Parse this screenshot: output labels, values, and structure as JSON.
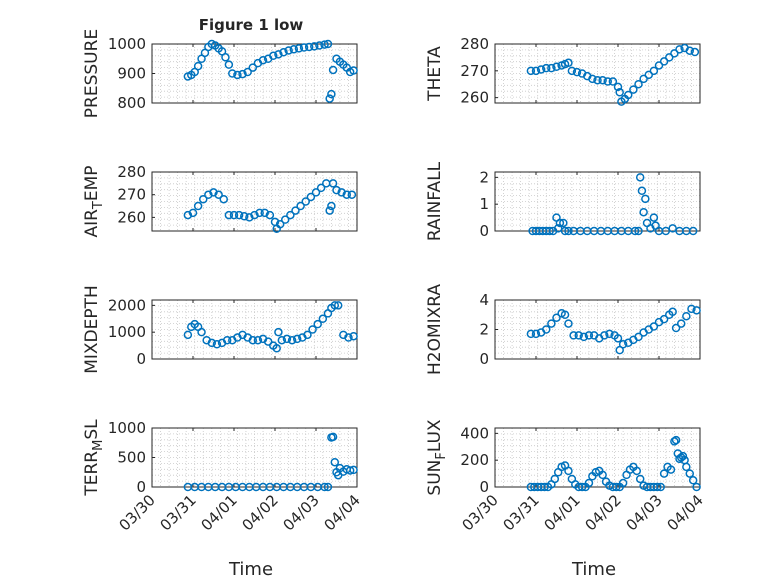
{
  "figure_title": "Figure 1 low",
  "chart_data": [
    {
      "type": "scatter",
      "ylabel": "PRESSURE",
      "ylim": [
        800,
        1000
      ],
      "yticks": [
        "800",
        "900",
        "1000"
      ],
      "xticks": [
        "03/30",
        "03/31",
        "04/01",
        "04/02",
        "04/03",
        "04/04"
      ],
      "x": [
        "03/30 21:00",
        "03/30 23:00",
        "03/31 01:00",
        "03/31 03:00",
        "03/31 05:00",
        "03/31 07:00",
        "03/31 09:00",
        "03/31 11:00",
        "03/31 13:00",
        "03/31 15:00",
        "03/31 17:00",
        "03/31 19:00",
        "03/31 21:00",
        "03/31 23:00",
        "04/01 02:00",
        "04/01 05:00",
        "04/01 08:00",
        "04/01 11:00",
        "04/01 14:00",
        "04/01 17:00",
        "04/01 20:00",
        "04/01 23:00",
        "04/02 02:00",
        "04/02 05:00",
        "04/02 08:00",
        "04/02 11:00",
        "04/02 14:00",
        "04/02 17:00",
        "04/02 20:00",
        "04/02 23:00",
        "04/03 02:00",
        "04/03 05:00",
        "04/03 07:00",
        "04/03 08:00",
        "04/03 09:00",
        "04/03 10:00",
        "04/03 12:00",
        "04/03 14:00",
        "04/03 16:00",
        "04/03 18:00",
        "04/03 20:00",
        "04/03 22:00"
      ],
      "y": [
        890,
        895,
        905,
        925,
        950,
        970,
        990,
        1000,
        995,
        985,
        975,
        955,
        930,
        900,
        895,
        898,
        905,
        920,
        935,
        945,
        950,
        960,
        965,
        972,
        978,
        982,
        985,
        988,
        990,
        992,
        995,
        998,
        1000,
        815,
        830,
        912,
        950,
        940,
        930,
        920,
        905,
        910
      ]
    },
    {
      "type": "scatter",
      "ylabel": "THETA",
      "ylim": [
        258,
        280
      ],
      "yticks": [
        "260",
        "270",
        "280"
      ],
      "xticks": [
        "03/30",
        "03/31",
        "04/01",
        "04/02",
        "04/03",
        "04/04"
      ],
      "x": [
        "03/30 21:00",
        "03/31 00:00",
        "03/31 03:00",
        "03/31 06:00",
        "03/31 09:00",
        "03/31 12:00",
        "03/31 15:00",
        "03/31 17:00",
        "03/31 19:00",
        "03/31 21:00",
        "04/01 00:00",
        "04/01 03:00",
        "04/01 06:00",
        "04/01 09:00",
        "04/01 12:00",
        "04/01 15:00",
        "04/01 18:00",
        "04/01 21:00",
        "04/02 00:00",
        "04/02 01:00",
        "04/02 02:00",
        "04/02 04:00",
        "04/02 06:00",
        "04/02 09:00",
        "04/02 12:00",
        "04/02 15:00",
        "04/02 18:00",
        "04/02 21:00",
        "04/03 00:00",
        "04/03 03:00",
        "04/03 06:00",
        "04/03 09:00",
        "04/03 12:00",
        "04/03 15:00",
        "04/03 18:00",
        "04/03 21:00"
      ],
      "y": [
        270,
        270,
        270.5,
        271,
        271,
        271.5,
        272,
        272.5,
        273,
        270,
        269.5,
        269,
        268,
        267,
        266.5,
        266.5,
        266,
        266,
        264,
        262,
        258.5,
        259.5,
        261,
        263,
        265,
        267,
        268.5,
        270,
        272,
        273.5,
        275,
        276.5,
        278,
        278.5,
        277.5,
        277
      ]
    },
    {
      "type": "scatter",
      "ylabel": "AIR_TEMP",
      "ylim": [
        254,
        280
      ],
      "yticks": [
        "260",
        "270",
        "280"
      ],
      "xticks": [
        "03/30",
        "03/31",
        "04/01",
        "04/02",
        "04/03",
        "04/04"
      ],
      "x": [
        "03/30 21:00",
        "03/31 00:00",
        "03/31 03:00",
        "03/31 06:00",
        "03/31 09:00",
        "03/31 12:00",
        "03/31 15:00",
        "03/31 18:00",
        "03/31 21:00",
        "04/01 00:00",
        "04/01 03:00",
        "04/01 06:00",
        "04/01 09:00",
        "04/01 12:00",
        "04/01 15:00",
        "04/01 18:00",
        "04/01 21:00",
        "04/02 00:00",
        "04/02 01:00",
        "04/02 03:00",
        "04/02 06:00",
        "04/02 09:00",
        "04/02 12:00",
        "04/02 15:00",
        "04/02 18:00",
        "04/02 21:00",
        "04/03 00:00",
        "04/03 03:00",
        "04/03 06:00",
        "04/03 08:00",
        "04/03 09:00",
        "04/03 10:00",
        "04/03 12:00",
        "04/03 15:00",
        "04/03 18:00",
        "04/03 21:00"
      ],
      "y": [
        261,
        262,
        265,
        268,
        270,
        271,
        270,
        268,
        261,
        261,
        261,
        260.5,
        260,
        261,
        262,
        262,
        261,
        258,
        255,
        257,
        259,
        261,
        263,
        265,
        267,
        269,
        271,
        273,
        275,
        263,
        265,
        275,
        272,
        271,
        270,
        270
      ]
    },
    {
      "type": "scatter",
      "ylabel": "RAINFALL",
      "ylim": [
        0,
        2.2
      ],
      "yticks": [
        "0",
        "1",
        "2"
      ],
      "xticks": [
        "03/30",
        "03/31",
        "04/01",
        "04/02",
        "04/03",
        "04/04"
      ],
      "x": [
        "03/30 22:00",
        "03/31 00:00",
        "03/31 02:00",
        "03/31 04:00",
        "03/31 06:00",
        "03/31 08:00",
        "03/31 10:00",
        "03/31 12:00",
        "03/31 13:00",
        "03/31 14:00",
        "03/31 16:00",
        "03/31 17:00",
        "03/31 19:00",
        "03/31 22:00",
        "04/01 02:00",
        "04/01 06:00",
        "04/01 10:00",
        "04/01 14:00",
        "04/01 18:00",
        "04/01 22:00",
        "04/02 02:00",
        "04/02 06:00",
        "04/02 10:00",
        "04/02 12:00",
        "04/02 13:00",
        "04/02 14:00",
        "04/02 15:00",
        "04/02 16:00",
        "04/02 17:00",
        "04/02 19:00",
        "04/02 21:00",
        "04/02 22:00",
        "04/03 00:00",
        "04/03 04:00",
        "04/03 08:00",
        "04/03 12:00",
        "04/03 16:00",
        "04/03 20:00"
      ],
      "y": [
        0,
        0,
        0,
        0,
        0,
        0,
        0,
        0.5,
        0.1,
        0.3,
        0.3,
        0,
        0,
        0,
        0,
        0,
        0,
        0,
        0,
        0,
        0,
        0,
        0,
        0,
        2,
        1.5,
        0.7,
        1.2,
        0.3,
        0.1,
        0.5,
        0.2,
        0,
        0,
        0.1,
        0,
        0,
        0
      ]
    },
    {
      "type": "scatter",
      "ylabel": "MIXDEPTH",
      "ylim": [
        0,
        2200
      ],
      "yticks": [
        "0",
        "1000",
        "2000"
      ],
      "xticks": [
        "03/30",
        "03/31",
        "04/01",
        "04/02",
        "04/03",
        "04/04"
      ],
      "x": [
        "03/30 21:00",
        "03/30 23:00",
        "03/31 01:00",
        "03/31 03:00",
        "03/31 05:00",
        "03/31 08:00",
        "03/31 11:00",
        "03/31 14:00",
        "03/31 17:00",
        "03/31 20:00",
        "03/31 23:00",
        "04/01 02:00",
        "04/01 05:00",
        "04/01 08:00",
        "04/01 11:00",
        "04/01 14:00",
        "04/01 17:00",
        "04/01 20:00",
        "04/01 23:00",
        "04/02 01:00",
        "04/02 02:00",
        "04/02 04:00",
        "04/02 07:00",
        "04/02 10:00",
        "04/02 13:00",
        "04/02 16:00",
        "04/02 19:00",
        "04/02 22:00",
        "04/03 01:00",
        "04/03 04:00",
        "04/03 07:00",
        "04/03 09:00",
        "04/03 11:00",
        "04/03 13:00",
        "04/03 16:00",
        "04/03 19:00",
        "04/03 22:00"
      ],
      "y": [
        900,
        1200,
        1300,
        1200,
        1000,
        700,
        600,
        550,
        600,
        700,
        700,
        800,
        900,
        800,
        700,
        700,
        750,
        650,
        500,
        400,
        1000,
        700,
        750,
        700,
        750,
        800,
        900,
        1100,
        1300,
        1500,
        1700,
        1900,
        2000,
        2000,
        900,
        800,
        850
      ]
    },
    {
      "type": "scatter",
      "ylabel": "H2OMIXRA",
      "ylim": [
        0,
        4
      ],
      "yticks": [
        "0",
        "2",
        "4"
      ],
      "xticks": [
        "03/30",
        "03/31",
        "04/01",
        "04/02",
        "04/03",
        "04/04"
      ],
      "x": [
        "03/30 21:00",
        "03/31 00:00",
        "03/31 03:00",
        "03/31 06:00",
        "03/31 09:00",
        "03/31 12:00",
        "03/31 15:00",
        "03/31 17:00",
        "03/31 19:00",
        "03/31 22:00",
        "04/01 01:00",
        "04/01 04:00",
        "04/01 07:00",
        "04/01 10:00",
        "04/01 13:00",
        "04/01 16:00",
        "04/01 19:00",
        "04/01 22:00",
        "04/02 00:00",
        "04/02 01:00",
        "04/02 03:00",
        "04/02 06:00",
        "04/02 09:00",
        "04/02 12:00",
        "04/02 15:00",
        "04/02 18:00",
        "04/02 21:00",
        "04/03 00:00",
        "04/03 03:00",
        "04/03 06:00",
        "04/03 08:00",
        "04/03 10:00",
        "04/03 13:00",
        "04/03 16:00",
        "04/03 19:00",
        "04/03 22:00"
      ],
      "y": [
        1.7,
        1.7,
        1.8,
        2,
        2.4,
        2.8,
        3.1,
        3,
        2.4,
        1.6,
        1.6,
        1.5,
        1.6,
        1.6,
        1.4,
        1.6,
        1.7,
        1.6,
        1.4,
        0.6,
        1.0,
        1.1,
        1.3,
        1.5,
        1.8,
        2,
        2.2,
        2.5,
        2.7,
        3,
        3.2,
        2.1,
        2.4,
        2.9,
        3.4,
        3.3
      ]
    },
    {
      "type": "scatter",
      "ylabel": "TERR_MSL",
      "ylim": [
        0,
        1000
      ],
      "yticks": [
        "0",
        "500",
        "1000"
      ],
      "xticks": [
        "03/30",
        "03/31",
        "04/01",
        "04/02",
        "04/03",
        "04/04"
      ],
      "x": [
        "03/30 21:00",
        "03/31 01:00",
        "03/31 05:00",
        "03/31 09:00",
        "03/31 13:00",
        "03/31 17:00",
        "03/31 21:00",
        "04/01 01:00",
        "04/01 05:00",
        "04/01 09:00",
        "04/01 13:00",
        "04/01 17:00",
        "04/01 21:00",
        "04/02 01:00",
        "04/02 05:00",
        "04/02 09:00",
        "04/02 13:00",
        "04/02 17:00",
        "04/02 21:00",
        "04/03 01:00",
        "04/03 05:00",
        "04/03 07:00",
        "04/03 09:00",
        "04/03 10:00",
        "04/03 11:00",
        "04/03 12:00",
        "04/03 13:00",
        "04/03 14:00",
        "04/03 16:00",
        "04/03 18:00",
        "04/03 20:00",
        "04/03 22:00"
      ],
      "y": [
        0,
        0,
        0,
        0,
        0,
        0,
        0,
        0,
        0,
        0,
        0,
        0,
        0,
        0,
        0,
        0,
        0,
        0,
        0,
        0,
        0,
        0,
        840,
        850,
        420,
        250,
        200,
        320,
        260,
        300,
        280,
        290
      ]
    },
    {
      "type": "scatter",
      "ylabel": "SUN_FLUX",
      "ylim": [
        0,
        440
      ],
      "yticks": [
        "0",
        "200",
        "400"
      ],
      "xticks": [
        "03/30",
        "03/31",
        "04/01",
        "04/02",
        "04/03",
        "04/04"
      ],
      "x": [
        "03/30 21:00",
        "03/30 23:00",
        "03/31 01:00",
        "03/31 03:00",
        "03/31 05:00",
        "03/31 07:00",
        "03/31 09:00",
        "03/31 11:00",
        "03/31 13:00",
        "03/31 15:00",
        "03/31 17:00",
        "03/31 19:00",
        "03/31 21:00",
        "03/31 23:00",
        "04/01 01:00",
        "04/01 03:00",
        "04/01 05:00",
        "04/01 07:00",
        "04/01 09:00",
        "04/01 11:00",
        "04/01 13:00",
        "04/01 15:00",
        "04/01 17:00",
        "04/01 19:00",
        "04/01 21:00",
        "04/01 23:00",
        "04/02 01:00",
        "04/02 03:00",
        "04/02 05:00",
        "04/02 07:00",
        "04/02 09:00",
        "04/02 11:00",
        "04/02 13:00",
        "04/02 15:00",
        "04/02 17:00",
        "04/02 19:00",
        "04/02 21:00",
        "04/02 23:00",
        "04/03 01:00",
        "04/03 03:00",
        "04/03 05:00",
        "04/03 07:00",
        "04/03 09:00",
        "04/03 10:00",
        "04/03 11:00",
        "04/03 12:00",
        "04/03 13:00",
        "04/03 14:00",
        "04/03 15:00",
        "04/03 16:00",
        "04/03 18:00",
        "04/03 20:00",
        "04/03 22:00"
      ],
      "y": [
        0,
        0,
        0,
        0,
        0,
        0,
        20,
        60,
        110,
        150,
        160,
        120,
        60,
        20,
        0,
        0,
        0,
        30,
        80,
        110,
        120,
        90,
        40,
        10,
        0,
        0,
        0,
        30,
        90,
        130,
        150,
        120,
        60,
        10,
        0,
        0,
        0,
        0,
        0,
        100,
        150,
        130,
        340,
        350,
        250,
        210,
        220,
        230,
        200,
        150,
        100,
        50,
        0
      ]
    }
  ],
  "xlabel_left": "Time",
  "xlabel_right": "Time",
  "style": {
    "marker_color": "#0072BD",
    "axis_color": "#262626",
    "grid_color": "#c8c8c8"
  }
}
